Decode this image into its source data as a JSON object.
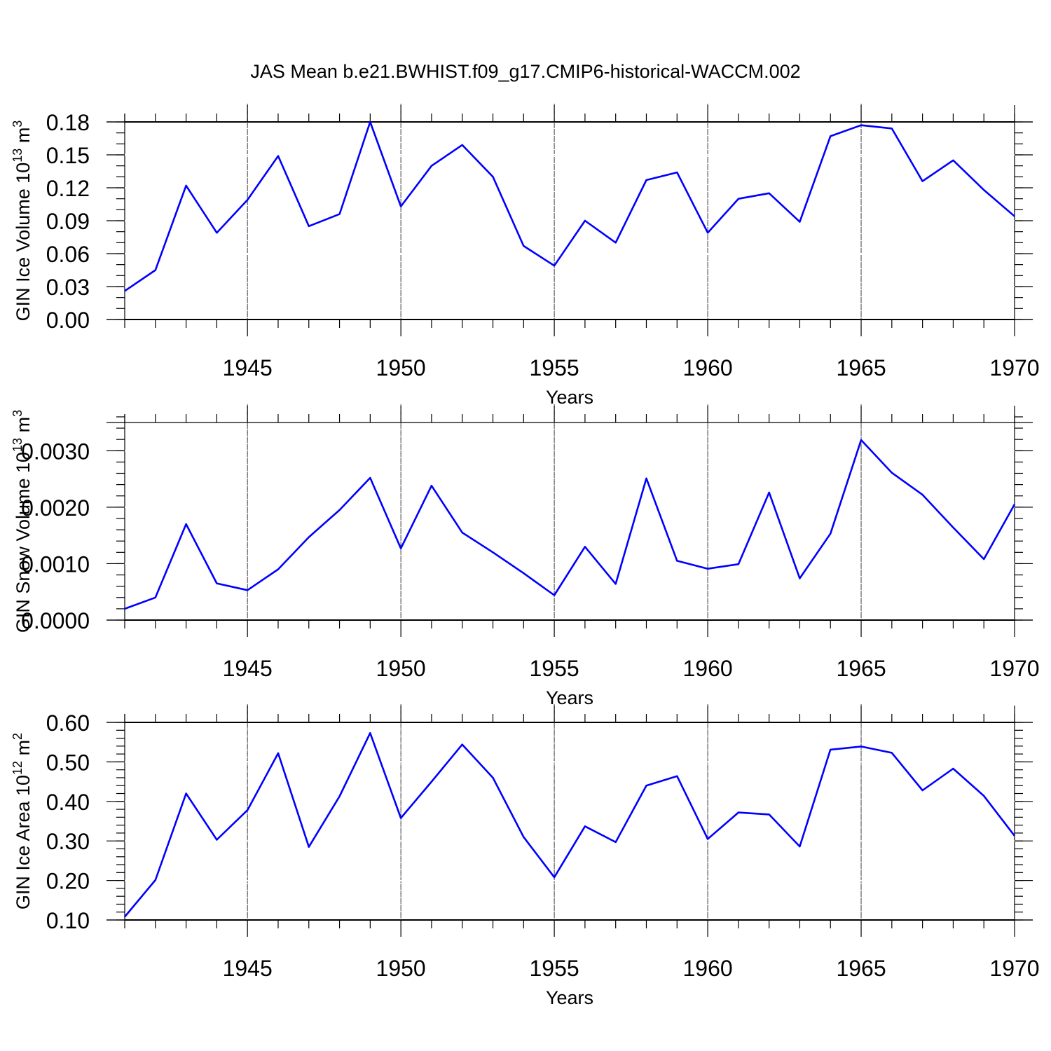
{
  "title": "JAS Mean b.e21.BWHIST.f09_g17.CMIP6-historical-WACCM.002",
  "line_color": "#0000ff",
  "chart_data": [
    {
      "type": "line",
      "ylabel": "GIN Ice Volume 10",
      "ylabel_sup": "13",
      "ylabel_unit": " m",
      "ylabel_unit_sup": "3",
      "xlabel": "Years",
      "xlim": [
        1941,
        1970
      ],
      "ylim": [
        0.0,
        0.18
      ],
      "yticks": [
        0.0,
        0.03,
        0.06,
        0.09,
        0.12,
        0.15,
        0.18
      ],
      "ytick_labels": [
        "0.00",
        "0.03",
        "0.06",
        "0.09",
        "0.12",
        "0.15",
        "0.18"
      ],
      "yminor_step": 0.01,
      "xticks": [
        1945,
        1950,
        1955,
        1960,
        1965,
        1970
      ],
      "xtick_labels": [
        "1945",
        "1950",
        "1955",
        "1960",
        "1965",
        "1970"
      ],
      "x": [
        1941,
        1942,
        1943,
        1944,
        1945,
        1946,
        1947,
        1948,
        1949,
        1950,
        1951,
        1952,
        1953,
        1954,
        1955,
        1956,
        1957,
        1958,
        1959,
        1960,
        1961,
        1962,
        1963,
        1964,
        1965,
        1966,
        1967,
        1968,
        1969,
        1970
      ],
      "values": [
        0.026,
        0.045,
        0.122,
        0.079,
        0.109,
        0.149,
        0.085,
        0.096,
        0.18,
        0.103,
        0.14,
        0.159,
        0.13,
        0.067,
        0.049,
        0.09,
        0.07,
        0.127,
        0.134,
        0.079,
        0.11,
        0.115,
        0.089,
        0.167,
        0.177,
        0.174,
        0.126,
        0.145,
        0.118,
        0.094
      ]
    },
    {
      "type": "line",
      "ylabel": "GIN Snow Volume 10",
      "ylabel_sup": "13",
      "ylabel_unit": " m",
      "ylabel_unit_sup": "3",
      "xlabel": "Years",
      "xlim": [
        1941,
        1970
      ],
      "ylim": [
        0.0,
        0.0035
      ],
      "yticks": [
        0.0,
        0.001,
        0.002,
        0.003
      ],
      "ytick_labels": [
        "0.0000",
        "0.0010",
        "0.0020",
        "0.0030"
      ],
      "yminor_step": 0.0002,
      "xticks": [
        1945,
        1950,
        1955,
        1960,
        1965,
        1970
      ],
      "xtick_labels": [
        "1945",
        "1950",
        "1955",
        "1960",
        "1965",
        "1970"
      ],
      "x": [
        1941,
        1942,
        1943,
        1944,
        1945,
        1946,
        1947,
        1948,
        1949,
        1950,
        1951,
        1952,
        1953,
        1954,
        1955,
        1956,
        1957,
        1958,
        1959,
        1960,
        1961,
        1962,
        1963,
        1964,
        1965,
        1966,
        1967,
        1968,
        1969,
        1970
      ],
      "values": [
        0.0002,
        0.0004,
        0.0017,
        0.00065,
        0.00053,
        0.0009,
        0.00147,
        0.00195,
        0.00252,
        0.00127,
        0.00238,
        0.00155,
        0.0012,
        0.00083,
        0.00044,
        0.0013,
        0.00064,
        0.00251,
        0.00105,
        0.00091,
        0.00099,
        0.00226,
        0.00074,
        0.00153,
        0.00319,
        0.00261,
        0.00222,
        0.00164,
        0.00108,
        0.00205
      ]
    },
    {
      "type": "line",
      "ylabel": "GIN Ice Area 10",
      "ylabel_sup": "12",
      "ylabel_unit": " m",
      "ylabel_unit_sup": "2",
      "xlabel": "Years",
      "xlim": [
        1941,
        1970
      ],
      "ylim": [
        0.1,
        0.6
      ],
      "yticks": [
        0.1,
        0.2,
        0.3,
        0.4,
        0.5,
        0.6
      ],
      "ytick_labels": [
        "0.10",
        "0.20",
        "0.30",
        "0.40",
        "0.50",
        "0.60"
      ],
      "yminor_step": 0.02,
      "xticks": [
        1945,
        1950,
        1955,
        1960,
        1965,
        1970
      ],
      "xtick_labels": [
        "1945",
        "1950",
        "1955",
        "1960",
        "1965",
        "1970"
      ],
      "x": [
        1941,
        1942,
        1943,
        1944,
        1945,
        1946,
        1947,
        1948,
        1949,
        1950,
        1951,
        1952,
        1953,
        1954,
        1955,
        1956,
        1957,
        1958,
        1959,
        1960,
        1961,
        1962,
        1963,
        1964,
        1965,
        1966,
        1967,
        1968,
        1969,
        1970
      ],
      "values": [
        0.108,
        0.201,
        0.42,
        0.303,
        0.378,
        0.522,
        0.285,
        0.413,
        0.573,
        0.358,
        0.45,
        0.544,
        0.46,
        0.31,
        0.208,
        0.337,
        0.297,
        0.44,
        0.464,
        0.305,
        0.372,
        0.367,
        0.286,
        0.531,
        0.539,
        0.523,
        0.428,
        0.483,
        0.414,
        0.313
      ]
    }
  ]
}
